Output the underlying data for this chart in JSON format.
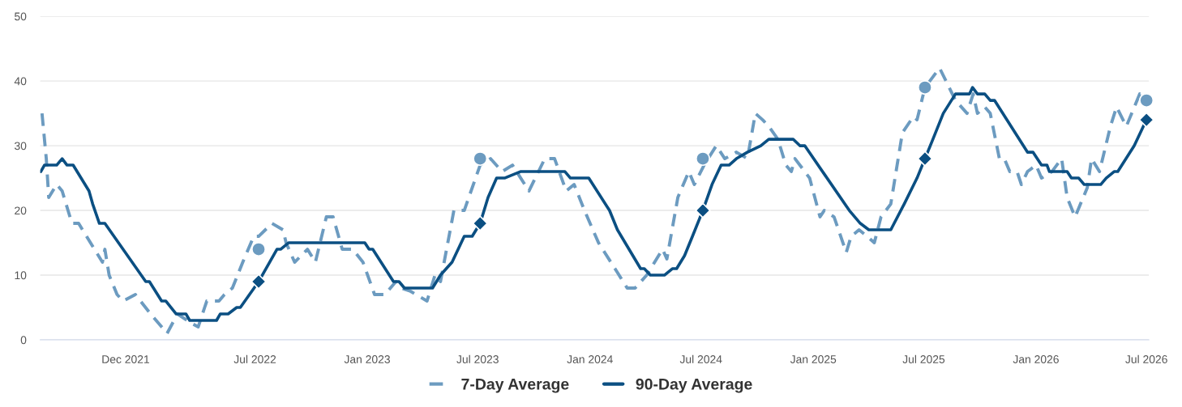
{
  "chart_data": {
    "type": "line",
    "xlim": [
      "2021-07-14",
      "2026-07-05"
    ],
    "xticks": [
      {
        "value": "2021-12-01",
        "label": "Dec 2021"
      },
      {
        "value": "2022-07-01",
        "label": "Jul 2022"
      },
      {
        "value": "2023-01-01",
        "label": "Jan 2023"
      },
      {
        "value": "2023-07-01",
        "label": "Jul 2023"
      },
      {
        "value": "2024-01-01",
        "label": "Jan 2024"
      },
      {
        "value": "2024-07-01",
        "label": "Jul 2024"
      },
      {
        "value": "2025-01-01",
        "label": "Jan 2025"
      },
      {
        "value": "2025-07-01",
        "label": "Jul 2025"
      },
      {
        "value": "2026-01-01",
        "label": "Jan 2026"
      },
      {
        "value": "2026-07-01",
        "label": "Jul 2026"
      }
    ],
    "ylim": [
      0,
      50
    ],
    "yticks": [
      0,
      10,
      20,
      30,
      40,
      50
    ],
    "grid": "y",
    "legend": "bottom",
    "series": [
      {
        "name": "7-Day Average",
        "color": "#6c9bc0",
        "line_style": "dashed",
        "marker": "none",
        "x": [
          "2021-07-17",
          "2021-07-24",
          "2021-07-28",
          "2021-08-10",
          "2021-08-19",
          "2021-09-04",
          "2021-09-15",
          "2021-10-11",
          "2021-10-24",
          "2021-10-28",
          "2021-11-04",
          "2021-11-17",
          "2021-11-27",
          "2021-12-17",
          "2022-01-11",
          "2022-02-07",
          "2022-02-24",
          "2022-03-20",
          "2022-03-30",
          "2022-04-13",
          "2022-05-03",
          "2022-05-12",
          "2022-05-25",
          "2022-06-11",
          "2022-06-29",
          "2022-07-07",
          "2022-07-29",
          "2022-08-16",
          "2022-08-21",
          "2022-09-04",
          "2022-09-25",
          "2022-10-08",
          "2022-10-26",
          "2022-11-06",
          "2022-11-21",
          "2022-12-08",
          "2022-12-25",
          "2023-01-13",
          "2023-01-30",
          "2023-02-17",
          "2023-02-26",
          "2023-03-13",
          "2023-03-22",
          "2023-04-09",
          "2023-04-22",
          "2023-05-01",
          "2023-05-23",
          "2023-06-09",
          "2023-07-05",
          "2023-07-22",
          "2023-08-10",
          "2023-08-27",
          "2023-09-23",
          "2023-10-19",
          "2023-11-04",
          "2023-11-23",
          "2023-12-06",
          "2023-12-23",
          "2024-01-15",
          "2024-02-11",
          "2024-03-02",
          "2024-03-15",
          "2024-04-03",
          "2024-04-29",
          "2024-05-06",
          "2024-05-24",
          "2024-06-11",
          "2024-06-20",
          "2024-07-06",
          "2024-07-26",
          "2024-08-09",
          "2024-08-28",
          "2024-09-15",
          "2024-09-28",
          "2024-10-10",
          "2024-10-20",
          "2024-11-04",
          "2024-11-17",
          "2024-11-26",
          "2024-12-02",
          "2024-12-26",
          "2025-01-12",
          "2025-01-19",
          "2025-02-04",
          "2025-02-24",
          "2025-03-04",
          "2025-03-17",
          "2025-03-30",
          "2025-04-11",
          "2025-04-22",
          "2025-05-08",
          "2025-05-27",
          "2025-06-14",
          "2025-06-20",
          "2025-07-03",
          "2025-07-27",
          "2025-08-22",
          "2025-09-10",
          "2025-09-20",
          "2025-09-27",
          "2025-10-09",
          "2025-10-18",
          "2025-11-02",
          "2025-11-10",
          "2025-11-19",
          "2025-12-01",
          "2025-12-08",
          "2025-12-18",
          "2026-01-01",
          "2026-01-10",
          "2026-01-27",
          "2026-02-12",
          "2026-02-21",
          "2026-03-06",
          "2026-03-26",
          "2026-04-02",
          "2026-04-15",
          "2026-05-03",
          "2026-05-13",
          "2026-05-29",
          "2026-06-20",
          "2026-07-01"
        ],
        "values": [
          35,
          28,
          22,
          24,
          23,
          18,
          18,
          14,
          12,
          14,
          10,
          7,
          6,
          7,
          4,
          1,
          4,
          2.5,
          2,
          6,
          6,
          7,
          8,
          12,
          16,
          16,
          18,
          17,
          15,
          12,
          14,
          12,
          19,
          19,
          14,
          14,
          12,
          7,
          7,
          9,
          8,
          7.5,
          7,
          6,
          10,
          9,
          20,
          20,
          27,
          28,
          26,
          27,
          23,
          28,
          28,
          23,
          24,
          20,
          15,
          11,
          8,
          8,
          10,
          14,
          12.5,
          22,
          26,
          24,
          27,
          30,
          28,
          29,
          28,
          35,
          34,
          33,
          31,
          27,
          26,
          28,
          25,
          19,
          20,
          19,
          13.5,
          16,
          17,
          16,
          15,
          19,
          21,
          32,
          34.5,
          34,
          39,
          42,
          37,
          35,
          38,
          35,
          36,
          35,
          28,
          28,
          26,
          26,
          24,
          26,
          27,
          25,
          26,
          28,
          22,
          19,
          23.5,
          28,
          26,
          33,
          36,
          33,
          38,
          37
        ]
      },
      {
        "name": "90-Day Average",
        "color": "#0b4f82",
        "line_style": "solid",
        "marker": "none",
        "x": [
          "2021-07-15",
          "2021-07-21",
          "2021-08-10",
          "2021-08-19",
          "2021-08-27",
          "2021-09-06",
          "2021-10-02",
          "2021-10-08",
          "2021-10-19",
          "2021-10-28",
          "2022-01-03",
          "2022-01-09",
          "2022-01-29",
          "2022-02-05",
          "2022-02-22",
          "2022-03-10",
          "2022-03-16",
          "2022-04-29",
          "2022-05-05",
          "2022-05-18",
          "2022-06-01",
          "2022-06-07",
          "2022-07-07",
          "2022-08-06",
          "2022-08-12",
          "2022-08-25",
          "2022-12-28",
          "2023-01-04",
          "2023-01-10",
          "2023-02-13",
          "2023-02-22",
          "2023-03-03",
          "2023-04-18",
          "2023-05-01",
          "2023-05-20",
          "2023-06-09",
          "2023-06-22",
          "2023-07-05",
          "2023-07-18",
          "2023-08-01",
          "2023-08-14",
          "2023-09-09",
          "2023-11-21",
          "2023-11-30",
          "2023-12-30",
          "2024-02-02",
          "2024-02-15",
          "2024-03-24",
          "2024-03-30",
          "2024-04-09",
          "2024-05-02",
          "2024-05-15",
          "2024-05-22",
          "2024-06-04",
          "2024-06-17",
          "2024-07-04",
          "2024-07-19",
          "2024-08-03",
          "2024-08-16",
          "2024-08-28",
          "2024-09-15",
          "2024-10-07",
          "2024-10-20",
          "2024-11-29",
          "2024-12-10",
          "2024-12-18",
          "2025-03-01",
          "2025-03-19",
          "2025-04-02",
          "2025-05-08",
          "2025-05-30",
          "2025-06-20",
          "2025-07-03",
          "2025-07-16",
          "2025-08-02",
          "2025-08-22",
          "2025-09-14",
          "2025-09-19",
          "2025-09-27",
          "2025-10-09",
          "2025-10-18",
          "2025-10-25",
          "2025-12-18",
          "2025-12-27",
          "2026-01-10",
          "2026-01-19",
          "2026-01-23",
          "2026-02-21",
          "2026-02-28",
          "2026-03-12",
          "2026-03-21",
          "2026-04-17",
          "2026-04-26",
          "2026-05-09",
          "2026-05-15",
          "2026-06-11",
          "2026-07-01"
        ],
        "values": [
          26,
          27,
          27,
          28,
          27,
          27,
          23,
          21,
          18,
          18,
          9,
          9,
          6,
          6,
          4,
          4,
          3,
          3,
          4,
          4,
          5,
          5,
          9,
          14,
          14,
          15,
          15,
          14,
          14,
          9,
          9,
          8,
          8,
          10,
          12,
          16,
          16,
          18,
          22,
          25,
          25,
          26,
          26,
          25,
          25,
          20,
          17,
          11,
          11,
          10,
          10,
          11,
          11,
          13,
          16,
          20,
          24,
          27,
          27,
          28,
          29,
          30,
          31,
          31,
          30,
          30,
          20,
          18,
          17,
          17,
          21,
          25,
          28,
          31,
          35,
          38,
          38,
          39,
          38,
          38,
          37,
          37,
          29,
          29,
          27,
          27,
          26,
          26,
          25,
          25,
          24,
          24,
          25,
          26,
          26,
          30,
          34
        ]
      },
      {
        "type": "scatter",
        "color": "#6c9bc0",
        "marker": "circle",
        "x": [
          "2022-07-07",
          "2023-07-05",
          "2024-07-04",
          "2025-07-03",
          "2026-07-01"
        ],
        "values": [
          14,
          28,
          28,
          39,
          37
        ]
      },
      {
        "type": "scatter",
        "color": "#0b4f82",
        "marker": "diamond",
        "x": [
          "2022-07-07",
          "2023-07-05",
          "2024-07-04",
          "2025-07-03",
          "2026-07-01"
        ],
        "values": [
          9,
          18,
          20,
          28,
          34
        ]
      }
    ]
  }
}
